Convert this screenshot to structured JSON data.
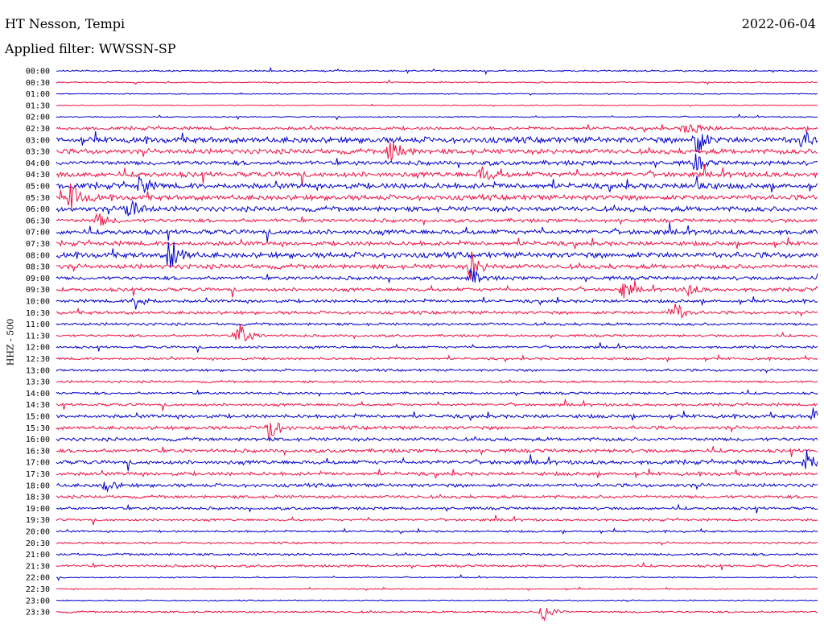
{
  "header": {
    "station": "HT Nesson, Tempi",
    "date": "2022-06-04",
    "filter": "Applied filter: WWSSN-SP"
  },
  "chart_data": {
    "type": "line",
    "ylabel": "HHZ - 500",
    "row_labels": [
      "00:00",
      "00:30",
      "01:00",
      "01:30",
      "02:00",
      "02:30",
      "03:00",
      "03:30",
      "04:00",
      "04:30",
      "05:00",
      "05:30",
      "06:00",
      "06:30",
      "07:00",
      "07:30",
      "08:00",
      "08:30",
      "09:00",
      "09:30",
      "10:00",
      "10:30",
      "11:00",
      "11:30",
      "12:00",
      "12:30",
      "13:00",
      "13:30",
      "14:00",
      "14:30",
      "15:00",
      "15:30",
      "16:00",
      "16:30",
      "17:00",
      "17:30",
      "18:00",
      "18:30",
      "19:00",
      "19:30",
      "20:00",
      "20:30",
      "21:00",
      "21:30",
      "22:00",
      "22:30",
      "23:00",
      "23:30"
    ],
    "colors": [
      "#0000cc",
      "#ee1144"
    ],
    "noise": [
      0.8,
      0.6,
      0.5,
      0.5,
      0.6,
      1.6,
      3.0,
      2.6,
      2.2,
      2.6,
      2.8,
      2.6,
      2.6,
      1.8,
      2.4,
      2.2,
      2.8,
      2.4,
      1.8,
      1.8,
      1.6,
      1.6,
      1.4,
      1.2,
      1.2,
      1.2,
      1.2,
      1.2,
      1.2,
      1.4,
      1.8,
      1.8,
      1.8,
      1.8,
      2.0,
      1.8,
      1.8,
      1.6,
      1.4,
      1.2,
      1.0,
      1.0,
      1.2,
      1.2,
      0.6,
      0.6,
      0.6,
      1.0
    ],
    "events": [
      {
        "row": 5,
        "t": 0.83,
        "amp": 7,
        "width": 0.012
      },
      {
        "row": 6,
        "t": 0.84,
        "amp": 25,
        "width": 0.006
      },
      {
        "row": 6,
        "t": 0.98,
        "amp": 9,
        "width": 0.01
      },
      {
        "row": 7,
        "t": 0.44,
        "amp": 16,
        "width": 0.008
      },
      {
        "row": 8,
        "t": 0.84,
        "amp": 12,
        "width": 0.006
      },
      {
        "row": 9,
        "t": 0.56,
        "amp": 9,
        "width": 0.008
      },
      {
        "row": 10,
        "t": 0.11,
        "amp": 14,
        "width": 0.006
      },
      {
        "row": 10,
        "t": 0.84,
        "amp": 12,
        "width": 0.006
      },
      {
        "row": 11,
        "t": 0.02,
        "amp": 18,
        "width": 0.008
      },
      {
        "row": 12,
        "t": 0.095,
        "amp": 18,
        "width": 0.007
      },
      {
        "row": 13,
        "t": 0.055,
        "amp": 9,
        "width": 0.008
      },
      {
        "row": 16,
        "t": 0.15,
        "amp": 26,
        "width": 0.007
      },
      {
        "row": 17,
        "t": 0.545,
        "amp": 18,
        "width": 0.007
      },
      {
        "row": 18,
        "t": 0.545,
        "amp": 12,
        "width": 0.007
      },
      {
        "row": 19,
        "t": 0.745,
        "amp": 11,
        "width": 0.007
      },
      {
        "row": 19,
        "t": 0.83,
        "amp": 8,
        "width": 0.007
      },
      {
        "row": 20,
        "t": 0.105,
        "amp": 11,
        "width": 0.007
      },
      {
        "row": 21,
        "t": 0.81,
        "amp": 17,
        "width": 0.007
      },
      {
        "row": 23,
        "t": 0.24,
        "amp": 18,
        "width": 0.007
      },
      {
        "row": 30,
        "t": 0.995,
        "amp": 12,
        "width": 0.006
      },
      {
        "row": 31,
        "t": 0.28,
        "amp": 16,
        "width": 0.007
      },
      {
        "row": 34,
        "t": 0.985,
        "amp": 20,
        "width": 0.006
      },
      {
        "row": 36,
        "t": 0.065,
        "amp": 8,
        "width": 0.007
      },
      {
        "row": 47,
        "t": 0.64,
        "amp": 14,
        "width": 0.007
      }
    ]
  }
}
